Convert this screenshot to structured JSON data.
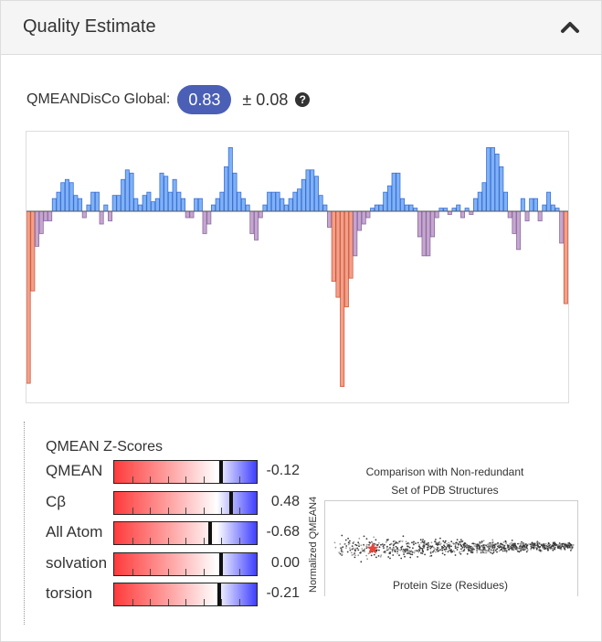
{
  "panel": {
    "title": "Quality Estimate",
    "collapse_icon": "chevron-up-icon"
  },
  "global": {
    "label": "QMEANDisCo Global:",
    "value": "0.83",
    "error": "± 0.08",
    "help_icon": "question-circle-icon",
    "help_glyph": "?"
  },
  "colors": {
    "badge": "#4a5fb5",
    "positive_bar": "#7fb2f5",
    "negative_bar": "#c4a6cf",
    "low_bar": "#f2a08a",
    "star": "#e8463c"
  },
  "chart_data": [
    {
      "type": "bar",
      "ylim": [
        -0.6,
        0.25
      ],
      "values": [
        -0.54,
        -0.25,
        -0.11,
        -0.07,
        -0.03,
        -0.03,
        0.04,
        0.06,
        0.09,
        0.1,
        0.09,
        0.05,
        0.04,
        -0.02,
        0.02,
        0.06,
        0.06,
        -0.04,
        0.02,
        -0.03,
        0.05,
        0.05,
        0.1,
        0.13,
        0.12,
        0.04,
        0.02,
        0.05,
        0.06,
        0.03,
        0.04,
        0.12,
        0.11,
        0.06,
        0.1,
        0.06,
        0.04,
        -0.02,
        -0.02,
        0.04,
        0.04,
        -0.07,
        -0.04,
        0.02,
        0.04,
        0.06,
        0.14,
        0.2,
        0.12,
        0.06,
        0.04,
        0.02,
        -0.07,
        -0.09,
        -0.02,
        0.02,
        0.06,
        0.06,
        0.06,
        0.04,
        0.02,
        0.04,
        0.06,
        0.07,
        0.1,
        0.13,
        0.13,
        0.11,
        0.05,
        0.02,
        -0.05,
        -0.22,
        -0.27,
        -0.55,
        -0.3,
        -0.21,
        -0.14,
        -0.06,
        -0.04,
        -0.02,
        0.01,
        0.02,
        0.02,
        0.06,
        0.08,
        0.12,
        0.12,
        0.04,
        0.02,
        0.02,
        0.01,
        -0.08,
        -0.14,
        -0.14,
        -0.08,
        -0.02,
        0.01,
        0.01,
        -0.01,
        0.01,
        0.02,
        -0.02,
        0.01,
        -0.01,
        0.04,
        0.06,
        0.09,
        0.2,
        0.2,
        0.18,
        0.14,
        0.06,
        -0.02,
        -0.07,
        -0.12,
        0.04,
        -0.03,
        0.04,
        0.04,
        -0.03,
        0.02,
        0.06,
        0.02,
        0.01,
        -0.1,
        -0.29
      ]
    },
    {
      "type": "scatter",
      "title": "Comparison with Non-redundant Set of PDB Structures",
      "title_lines": [
        "Comparison with Non-redundant",
        "Set of PDB Structures"
      ],
      "xlabel": "Protein Size (Residues)",
      "ylabel": "Normalized QMEAN4",
      "highlight": "star"
    }
  ],
  "zscores": {
    "title": "QMEAN Z-Scores",
    "rows": [
      {
        "label": "QMEAN",
        "value": "-0.12",
        "marker": 0.752
      },
      {
        "label": "Cβ",
        "value": "0.48",
        "marker": 0.82
      },
      {
        "label": "All Atom",
        "value": "-0.68",
        "marker": 0.676
      },
      {
        "label": "solvation",
        "value": "0.00",
        "marker": 0.75
      },
      {
        "label": "torsion",
        "value": "-0.21",
        "marker": 0.738
      }
    ]
  }
}
